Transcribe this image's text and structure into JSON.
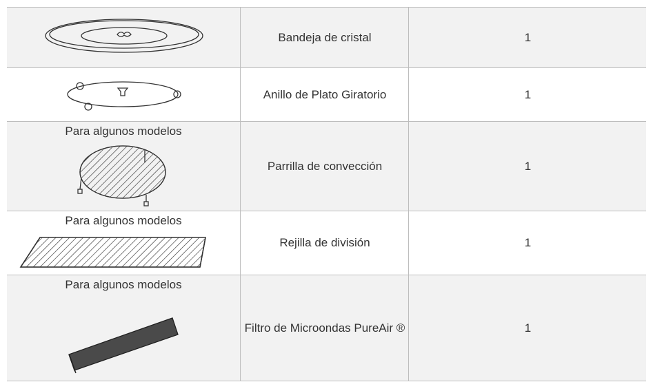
{
  "table": {
    "rows": [
      {
        "name": "Bandeja de cristal",
        "quantity": 1
      },
      {
        "name": "Anillo de Plato Giratorio",
        "quantity": 1
      },
      {
        "note": "Para algunos modelos",
        "name": "Parrilla de convección",
        "quantity": 1
      },
      {
        "note": "Para algunos modelos",
        "name": "Rejilla de división",
        "quantity": 1
      },
      {
        "note": "Para algunos modelos",
        "name": "Filtro de Microondas PureAir ®",
        "quantity": 1
      }
    ]
  }
}
